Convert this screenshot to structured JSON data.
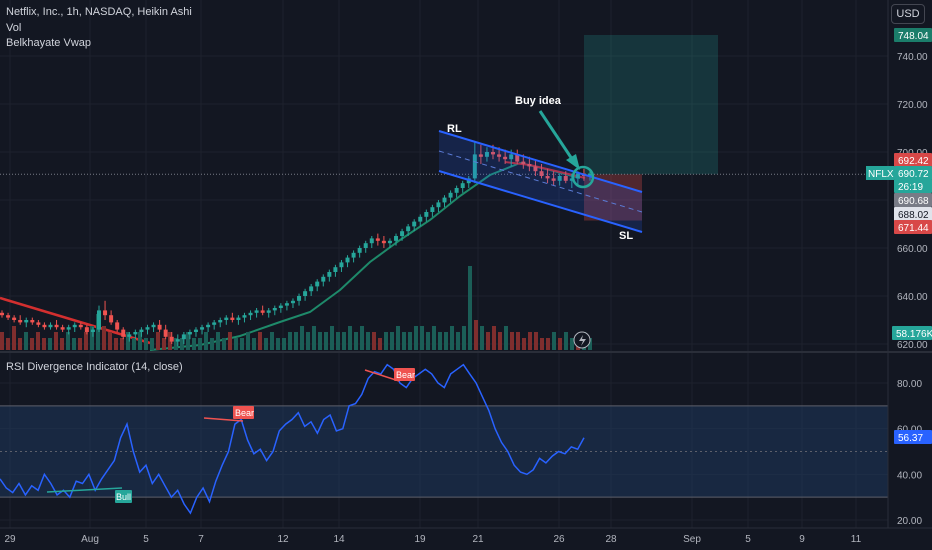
{
  "header": {
    "symbol_line": "Netflix, Inc., 1h, NASDAQ, Heikin Ashi",
    "indicator_1": "Vol",
    "indicator_2": "Belkhayate Vwap",
    "currency_button": "USD"
  },
  "rsi_pane": {
    "title": "RSI Divergence Indicator (14, close)"
  },
  "colors": {
    "background": "#131722",
    "bull": "#26a69a",
    "bear": "#ef5350",
    "vwap_line": "#1e8a6a",
    "vwap_red": "#d32f2f",
    "channel_blue": "#2962ff",
    "rsi_line": "#2962ff",
    "rsi_band": "#1e3a5f",
    "axis_text": "#b2b5be",
    "grid": "#1e222d"
  },
  "chart_data": [
    {
      "type": "candlestick",
      "title": "Netflix, Inc., 1h, NASDAQ, Heikin Ashi",
      "ylim": [
        620,
        752
      ],
      "y_ticks": [
        "620.00",
        "640.00",
        "660.00",
        "680.00",
        "700.00",
        "720.00",
        "740.00"
      ],
      "x_ticks": [
        "29",
        "Aug",
        "5",
        "7",
        "12",
        "14",
        "19",
        "21",
        "26",
        "28",
        "Sep",
        "5",
        "9",
        "11"
      ],
      "candles": [
        [
          633,
          634,
          631,
          632
        ],
        [
          632,
          633,
          630,
          631
        ],
        [
          631,
          632,
          629,
          630
        ],
        [
          630,
          632,
          628,
          629
        ],
        [
          629,
          631,
          627,
          630
        ],
        [
          630,
          631,
          628,
          629
        ],
        [
          629,
          630,
          627,
          628
        ],
        [
          628,
          629,
          626,
          627
        ],
        [
          627,
          629,
          626,
          628
        ],
        [
          628,
          630,
          626,
          627
        ],
        [
          627,
          628,
          625,
          626
        ],
        [
          626,
          628,
          624,
          627
        ],
        [
          627,
          629,
          625,
          628
        ],
        [
          628,
          629,
          626,
          627
        ],
        [
          627,
          628,
          624,
          625
        ],
        [
          625,
          627,
          623,
          626
        ],
        [
          626,
          636,
          625,
          634
        ],
        [
          634,
          638,
          630,
          632
        ],
        [
          632,
          634,
          628,
          629
        ],
        [
          629,
          630,
          625,
          626
        ],
        [
          626,
          627,
          622,
          623
        ],
        [
          623,
          625,
          621,
          624
        ],
        [
          624,
          626,
          622,
          625
        ],
        [
          625,
          627,
          623,
          626
        ],
        [
          626,
          628,
          624,
          627
        ],
        [
          627,
          629,
          625,
          628
        ],
        [
          628,
          630,
          625,
          626
        ],
        [
          626,
          628,
          622,
          623
        ],
        [
          623,
          625,
          620,
          621
        ],
        [
          621,
          624,
          619,
          622
        ],
        [
          622,
          625,
          620,
          624
        ],
        [
          624,
          626,
          622,
          625
        ],
        [
          625,
          627,
          623,
          626
        ],
        [
          626,
          628,
          624,
          627
        ],
        [
          627,
          629,
          625,
          628
        ],
        [
          628,
          630,
          626,
          629
        ],
        [
          629,
          631,
          627,
          630
        ],
        [
          630,
          632,
          628,
          631
        ],
        [
          631,
          633,
          629,
          630
        ],
        [
          630,
          632,
          628,
          631
        ],
        [
          631,
          633,
          629,
          632
        ],
        [
          632,
          634,
          630,
          633
        ],
        [
          633,
          635,
          631,
          634
        ],
        [
          634,
          636,
          632,
          633
        ],
        [
          633,
          635,
          631,
          634
        ],
        [
          634,
          636,
          632,
          635
        ],
        [
          635,
          637,
          633,
          636
        ],
        [
          636,
          638,
          634,
          637
        ],
        [
          637,
          639,
          635,
          638
        ],
        [
          638,
          641,
          636,
          640
        ],
        [
          640,
          643,
          638,
          642
        ],
        [
          642,
          645,
          640,
          644
        ],
        [
          644,
          647,
          642,
          646
        ],
        [
          646,
          649,
          644,
          648
        ],
        [
          648,
          651,
          646,
          650
        ],
        [
          650,
          653,
          648,
          652
        ],
        [
          652,
          655,
          650,
          654
        ],
        [
          654,
          657,
          652,
          656
        ],
        [
          656,
          659,
          654,
          658
        ],
        [
          658,
          661,
          656,
          660
        ],
        [
          660,
          663,
          658,
          662
        ],
        [
          662,
          665,
          660,
          664
        ],
        [
          664,
          666,
          661,
          663
        ],
        [
          663,
          665,
          660,
          662
        ],
        [
          662,
          664,
          660,
          663
        ],
        [
          663,
          666,
          661,
          665
        ],
        [
          665,
          668,
          663,
          667
        ],
        [
          667,
          670,
          665,
          669
        ],
        [
          669,
          672,
          667,
          671
        ],
        [
          671,
          674,
          669,
          673
        ],
        [
          673,
          676,
          671,
          675
        ],
        [
          675,
          678,
          673,
          677
        ],
        [
          677,
          680,
          675,
          679
        ],
        [
          679,
          682,
          677,
          681
        ],
        [
          681,
          684,
          679,
          683
        ],
        [
          683,
          686,
          681,
          685
        ],
        [
          685,
          688,
          683,
          687
        ],
        [
          687,
          690,
          685,
          689
        ],
        [
          689,
          704,
          687,
          699
        ],
        [
          699,
          703,
          695,
          698
        ],
        [
          698,
          702,
          696,
          700
        ],
        [
          700,
          703,
          697,
          699
        ],
        [
          699,
          702,
          696,
          698
        ],
        [
          698,
          701,
          695,
          697
        ],
        [
          697,
          701,
          694,
          699
        ],
        [
          699,
          701,
          695,
          696
        ],
        [
          696,
          699,
          693,
          695
        ],
        [
          695,
          698,
          692,
          694
        ],
        [
          694,
          697,
          690,
          692
        ],
        [
          692,
          695,
          689,
          690
        ],
        [
          690,
          693,
          687,
          689
        ],
        [
          689,
          692,
          686,
          688
        ],
        [
          688,
          691,
          686,
          690
        ],
        [
          690,
          692,
          687,
          688
        ],
        [
          688,
          691,
          685,
          689
        ],
        [
          689,
          692,
          686,
          691
        ],
        [
          691,
          693,
          688,
          690
        ],
        [
          690,
          693,
          688,
          691
        ]
      ]
    },
    {
      "type": "bar",
      "title": "Vol",
      "values": [
        3,
        2,
        4,
        2,
        3,
        2,
        3,
        2,
        2,
        3,
        2,
        3,
        2,
        2,
        3,
        4,
        6,
        4,
        3,
        2,
        2,
        3,
        2,
        3,
        2,
        2,
        3,
        2,
        3,
        2,
        2,
        3,
        2,
        2,
        3,
        2,
        3,
        2,
        3,
        2,
        2,
        3,
        2,
        3,
        2,
        3,
        2,
        2,
        3,
        3,
        4,
        3,
        4,
        3,
        3,
        4,
        3,
        3,
        4,
        3,
        4,
        3,
        3,
        2,
        3,
        3,
        4,
        3,
        3,
        4,
        4,
        3,
        4,
        3,
        3,
        4,
        3,
        4,
        14,
        5,
        4,
        3,
        4,
        3,
        4,
        3,
        3,
        2,
        3,
        3,
        2,
        2,
        3,
        2,
        3,
        2,
        2,
        3,
        2
      ]
    },
    {
      "type": "line",
      "title": "RSI Divergence Indicator (14, close)",
      "ylim": [
        17,
        93
      ],
      "y_ticks": [
        "20.00",
        "40.00",
        "60.00",
        "80.00"
      ],
      "band": [
        30,
        70
      ],
      "midline": 50,
      "last_value": "56.37",
      "values": [
        38,
        34,
        32,
        36,
        31,
        35,
        33,
        40,
        36,
        31,
        33,
        30,
        37,
        36,
        40,
        33,
        38,
        42,
        46,
        56,
        62,
        50,
        41,
        44,
        36,
        40,
        35,
        30,
        33,
        27,
        23,
        30,
        34,
        28,
        37,
        44,
        50,
        62,
        64,
        55,
        49,
        51,
        46,
        50,
        59,
        62,
        64,
        67,
        61,
        63,
        58,
        64,
        66,
        59,
        60,
        70,
        71,
        75,
        82,
        85,
        84,
        88,
        86,
        80,
        78,
        82,
        84,
        86,
        84,
        80,
        78,
        84,
        86,
        88,
        84,
        80,
        74,
        68,
        60,
        54,
        50,
        44,
        41,
        40,
        42,
        47,
        45,
        48,
        50,
        49,
        52,
        51,
        56
      ],
      "annotations": [
        "Bull",
        "Bear",
        "Bear"
      ]
    }
  ],
  "price_labels": {
    "target": "748.04",
    "tick_740": "740.00",
    "tick_720": "720.00",
    "tick_700": "700.00",
    "upper_stop": "692.42",
    "nflx_tag": "NFLX",
    "last_price": "690.72",
    "countdown": "26:19",
    "level_1": "690.68",
    "level_2": "688.02",
    "stop": "671.44",
    "tick_660": "660.00",
    "tick_640": "640.00",
    "tick_620": "620.00",
    "volume_value": "58.176K"
  },
  "annotations": {
    "rl": "RL",
    "sl": "SL",
    "buy_idea": "Buy idea",
    "bull": "Bull",
    "bear_1": "Bear",
    "bear_2": "Bear"
  }
}
